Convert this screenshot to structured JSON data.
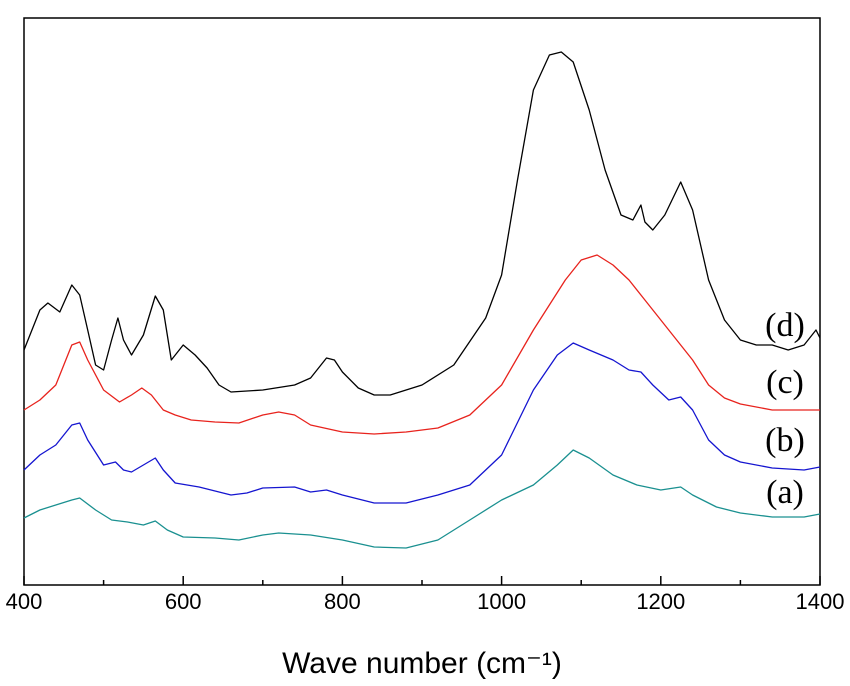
{
  "chart_data": {
    "type": "line",
    "xlabel": "Wave number (cm⁻¹)",
    "xlim": [
      400,
      1400
    ],
    "xticks": [
      400,
      600,
      800,
      1000,
      1200,
      1400
    ],
    "xminor": [
      500,
      700,
      900,
      1100,
      1300
    ],
    "ylim": [
      0,
      567
    ],
    "series": [
      {
        "name": "(d)",
        "color": "#000000",
        "x": [
          400,
          420,
          430,
          445,
          460,
          470,
          480,
          490,
          500,
          510,
          518,
          525,
          535,
          550,
          565,
          575,
          585,
          600,
          615,
          630,
          645,
          660,
          700,
          740,
          760,
          780,
          790,
          800,
          820,
          840,
          860,
          880,
          900,
          940,
          980,
          1000,
          1020,
          1040,
          1060,
          1075,
          1090,
          1110,
          1130,
          1150,
          1165,
          1175,
          1180,
          1190,
          1205,
          1225,
          1240,
          1260,
          1280,
          1300,
          1320,
          1340,
          1360,
          1380,
          1395,
          1400
        ],
        "values": [
          235,
          275,
          282,
          273,
          300,
          290,
          255,
          220,
          215,
          245,
          267,
          245,
          230,
          250,
          289,
          275,
          225,
          240,
          230,
          217,
          200,
          193,
          195,
          200,
          207,
          227,
          225,
          213,
          197,
          190,
          190,
          195,
          200,
          220,
          267,
          310,
          405,
          495,
          530,
          533,
          523,
          475,
          415,
          370,
          365,
          380,
          363,
          355,
          370,
          403,
          375,
          305,
          265,
          245,
          240,
          240,
          235,
          240,
          255,
          247
        ]
      },
      {
        "name": "(c)",
        "color": "#e8231d",
        "x": [
          400,
          420,
          440,
          460,
          470,
          480,
          500,
          520,
          535,
          548,
          560,
          575,
          590,
          610,
          640,
          670,
          700,
          720,
          740,
          760,
          800,
          840,
          880,
          920,
          960,
          1000,
          1040,
          1080,
          1100,
          1120,
          1140,
          1160,
          1180,
          1200,
          1220,
          1240,
          1260,
          1280,
          1300,
          1340,
          1380,
          1400
        ],
        "values": [
          175,
          185,
          200,
          240,
          243,
          225,
          195,
          183,
          190,
          197,
          190,
          175,
          170,
          165,
          163,
          162,
          170,
          173,
          170,
          160,
          153,
          151,
          153,
          157,
          170,
          200,
          255,
          305,
          325,
          330,
          320,
          305,
          285,
          265,
          245,
          225,
          200,
          187,
          181,
          175,
          175,
          175
        ]
      },
      {
        "name": "(b)",
        "color": "#1515d0",
        "x": [
          400,
          420,
          440,
          460,
          470,
          480,
          500,
          515,
          525,
          535,
          550,
          565,
          575,
          590,
          620,
          660,
          680,
          700,
          740,
          760,
          780,
          800,
          840,
          880,
          920,
          960,
          1000,
          1040,
          1070,
          1090,
          1110,
          1140,
          1160,
          1175,
          1190,
          1210,
          1225,
          1240,
          1260,
          1280,
          1300,
          1340,
          1380,
          1400
        ],
        "values": [
          115,
          130,
          140,
          160,
          162,
          145,
          120,
          123,
          115,
          113,
          120,
          127,
          115,
          102,
          98,
          90,
          92,
          97,
          98,
          93,
          95,
          90,
          82,
          82,
          90,
          100,
          130,
          195,
          230,
          242,
          235,
          225,
          215,
          213,
          200,
          185,
          188,
          175,
          145,
          130,
          123,
          117,
          115,
          118
        ]
      },
      {
        "name": "(a)",
        "color": "#1a9090",
        "x": [
          400,
          420,
          440,
          460,
          470,
          490,
          510,
          530,
          550,
          565,
          580,
          600,
          640,
          670,
          700,
          720,
          760,
          800,
          840,
          880,
          920,
          960,
          1000,
          1040,
          1070,
          1090,
          1110,
          1140,
          1170,
          1200,
          1225,
          1240,
          1270,
          1300,
          1340,
          1380,
          1400
        ],
        "values": [
          67,
          75,
          80,
          85,
          87,
          75,
          65,
          63,
          60,
          64,
          55,
          48,
          47,
          45,
          50,
          52,
          50,
          45,
          38,
          37,
          45,
          65,
          85,
          100,
          120,
          135,
          127,
          110,
          100,
          95,
          98,
          90,
          78,
          72,
          68,
          68,
          71
        ]
      }
    ]
  }
}
